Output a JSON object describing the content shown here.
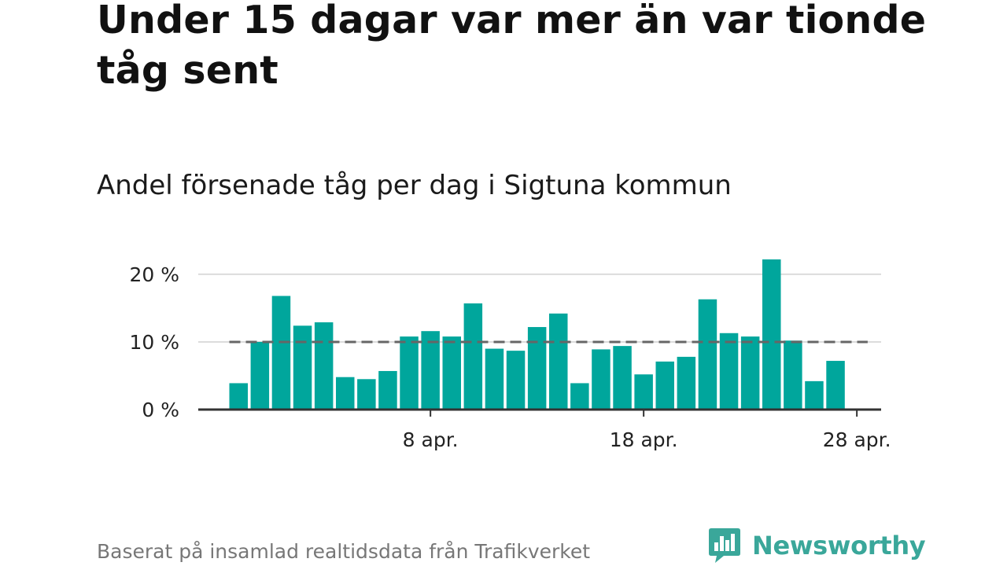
{
  "title": "Under 15 dagar var mer än var tionde tåg sent",
  "subtitle": "Andel försenade tåg per dag i Sigtuna kommun",
  "source": "Baserat på insamlad realtidsdata från Trafikverket",
  "logo": {
    "text": "Newsworthy",
    "icon": "newsworthy-logo-icon"
  },
  "colors": {
    "bar": "#00a69c",
    "reference_line": "#666666",
    "grid": "#dcdcdc",
    "axis": "#333333",
    "logo": "#3aa79a"
  },
  "chart_data": {
    "type": "bar",
    "title": "Andel försenade tåg per dag i Sigtuna kommun",
    "xlabel": "",
    "ylabel": "",
    "x": [
      "2024-03-30",
      "2024-03-31",
      "2024-04-01",
      "2024-04-02",
      "2024-04-03",
      "2024-04-04",
      "2024-04-05",
      "2024-04-06",
      "2024-04-07",
      "2024-04-08",
      "2024-04-09",
      "2024-04-10",
      "2024-04-11",
      "2024-04-12",
      "2024-04-13",
      "2024-04-14",
      "2024-04-15",
      "2024-04-16",
      "2024-04-17",
      "2024-04-18",
      "2024-04-19",
      "2024-04-20",
      "2024-04-21",
      "2024-04-22",
      "2024-04-23",
      "2024-04-24",
      "2024-04-25",
      "2024-04-26",
      "2024-04-27",
      "2024-04-28"
    ],
    "values": [
      3.9,
      10.0,
      16.8,
      12.4,
      12.9,
      4.8,
      4.5,
      5.7,
      10.8,
      11.6,
      10.8,
      15.7,
      9.0,
      8.7,
      12.2,
      14.2,
      3.9,
      8.9,
      9.4,
      5.2,
      7.1,
      7.8,
      16.3,
      11.3,
      10.8,
      22.2,
      10.2,
      4.2,
      7.2,
      null
    ],
    "reference_line": {
      "value": 10,
      "style": "dashed"
    },
    "ylim": [
      0,
      22.2
    ],
    "y_ticks": [
      {
        "value": 0,
        "label": "0 %"
      },
      {
        "value": 10,
        "label": "10 %"
      },
      {
        "value": 20,
        "label": "20 %"
      }
    ],
    "x_ticks": [
      {
        "value": "2024-04-08",
        "label": "8 apr."
      },
      {
        "value": "2024-04-18",
        "label": "18 apr."
      },
      {
        "value": "2024-04-28",
        "label": "28 apr."
      }
    ],
    "grid": true,
    "legend": "none"
  }
}
